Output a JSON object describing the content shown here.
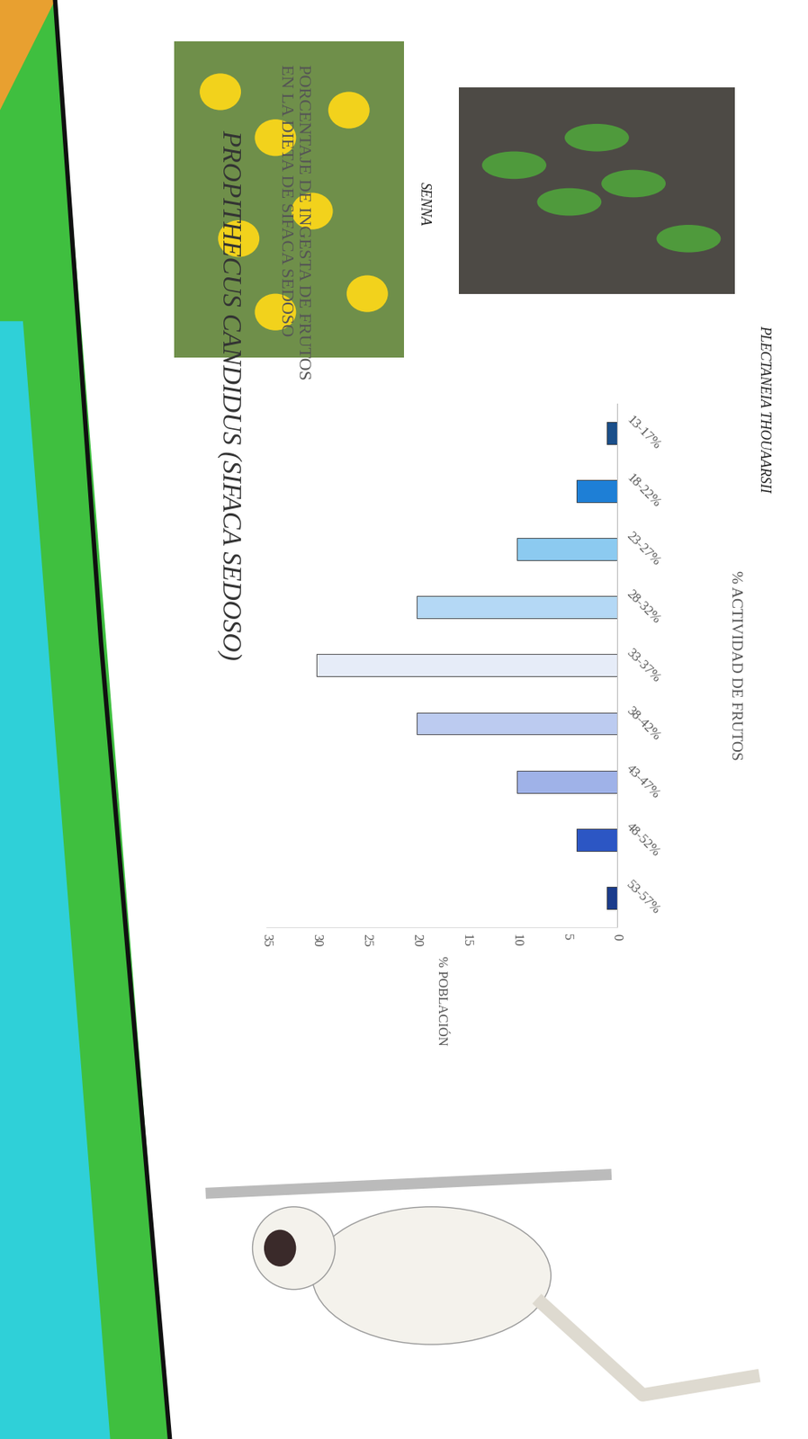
{
  "title": "PROPITHECUS CANDIDUS (SIFACA SEDOSO)",
  "captions": [
    "SENNA",
    "PLECTANEIA THOUAARSII"
  ],
  "chart_data": {
    "type": "bar",
    "orientation": "horizontal",
    "title": "PORCENTAJE DE INGESTA DE FRUTOS EN LA DIETA DE SIFACA SEDOSO",
    "x_label": "% ACTIVIDAD DE FRUTOS",
    "y_label": "% POBLACIÓN",
    "categories": [
      "13-17%",
      "18-22%",
      "23-27%",
      "28-32%",
      "33-37%",
      "38-42%",
      "43-47%",
      "48-52%",
      "53-57%"
    ],
    "values": [
      1,
      4,
      10,
      20,
      30,
      20,
      10,
      4,
      1
    ],
    "colors": [
      "#1b4f8a",
      "#1e7fd6",
      "#8ccaf0",
      "#b4d8f5",
      "#e6ecf8",
      "#bccbf0",
      "#9fb2e8",
      "#2c56c4",
      "#1b3c8c"
    ],
    "ylim": [
      0,
      35
    ],
    "yticks": [
      0,
      5,
      10,
      15,
      20,
      25,
      30,
      35
    ],
    "grid": false
  }
}
